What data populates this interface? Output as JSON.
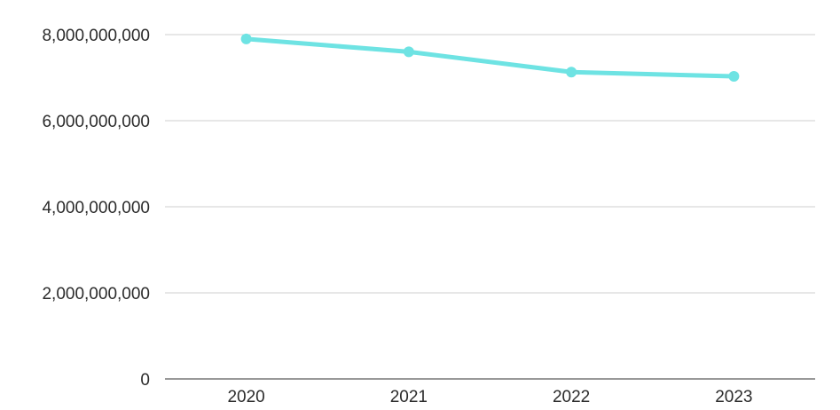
{
  "chart_data": {
    "type": "line",
    "title": "",
    "xlabel": "",
    "ylabel": "",
    "categories": [
      "2020",
      "2021",
      "2022",
      "2023"
    ],
    "series": [
      {
        "values": [
          7900000000,
          7600000000,
          7130000000,
          7030000000
        ],
        "color": "#6ee3e3"
      }
    ],
    "ylim": [
      0,
      8000000000
    ],
    "yticks": [
      0,
      2000000000,
      4000000000,
      6000000000,
      8000000000
    ],
    "ytick_labels": [
      "0",
      "2,000,000,000",
      "4,000,000,000",
      "6,000,000,000",
      "8,000,000,000"
    ],
    "grid": true,
    "legend": "none"
  }
}
